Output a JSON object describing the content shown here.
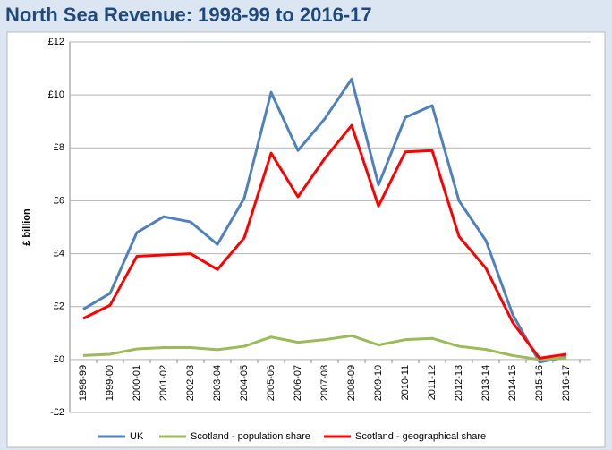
{
  "chart_data": {
    "type": "line",
    "title": "North Sea Revenue: 1998-99 to 2016-17",
    "y_label": "£ billion",
    "categories": [
      "1998-99",
      "1999-00",
      "2000-01",
      "2001-02",
      "2002-03",
      "2003-04",
      "2004-05",
      "2005-06",
      "2006-07",
      "2007-08",
      "2008-09",
      "2009-10",
      "2010-11",
      "2011-12",
      "2012-13",
      "2013-14",
      "2014-15",
      "2015-16",
      "2016-17"
    ],
    "series": [
      {
        "name": "UK",
        "color": "#4f81bd",
        "values": [
          1.9,
          2.5,
          4.8,
          5.4,
          5.2,
          4.35,
          6.1,
          10.1,
          7.9,
          9.1,
          10.6,
          6.6,
          9.15,
          9.6,
          6.0,
          4.5,
          1.7,
          -0.1,
          0.1
        ]
      },
      {
        "name": "Scotland - population share",
        "color": "#9bbb59",
        "values": [
          0.15,
          0.2,
          0.4,
          0.45,
          0.45,
          0.37,
          0.5,
          0.85,
          0.65,
          0.75,
          0.9,
          0.55,
          0.75,
          0.8,
          0.5,
          0.38,
          0.15,
          0.0,
          0.05
        ]
      },
      {
        "name": "Scotland - geographical share",
        "color": "#ff0000",
        "values": [
          1.55,
          2.05,
          3.9,
          3.95,
          4.0,
          3.4,
          4.6,
          7.8,
          6.15,
          7.6,
          8.85,
          5.8,
          7.85,
          7.9,
          4.65,
          3.45,
          1.4,
          0.05,
          0.2
        ]
      }
    ],
    "ylim": [
      -2,
      12
    ],
    "yticks": [
      {
        "value": -2,
        "label": "-£2"
      },
      {
        "value": 0,
        "label": "£0"
      },
      {
        "value": 2,
        "label": "£2"
      },
      {
        "value": 4,
        "label": "£4"
      },
      {
        "value": 6,
        "label": "£6"
      },
      {
        "value": 8,
        "label": "£8"
      },
      {
        "value": 10,
        "label": "£10"
      },
      {
        "value": 12,
        "label": "£12"
      }
    ],
    "grid": true
  }
}
